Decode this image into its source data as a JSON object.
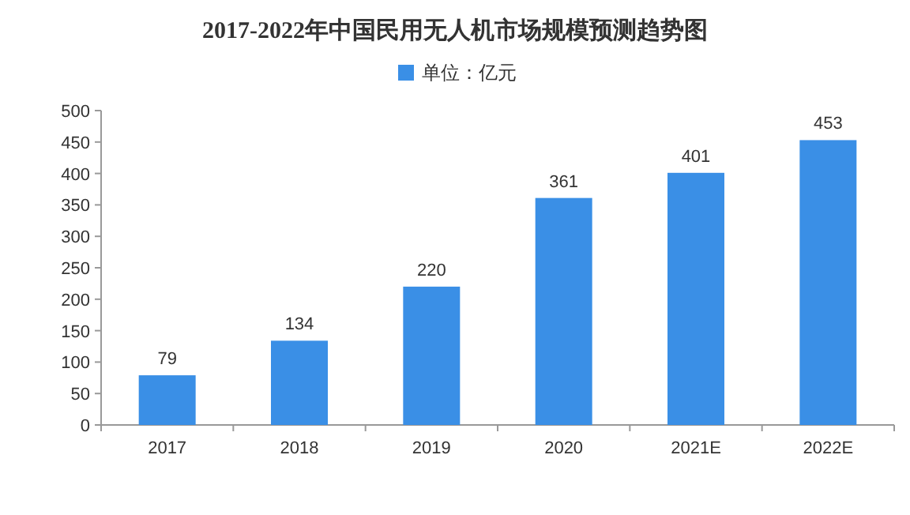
{
  "chart_data": {
    "type": "bar",
    "title": "2017-2022年中国民用无人机市场规模预测趋势图",
    "categories": [
      "2017",
      "2018",
      "2019",
      "2020",
      "2021E",
      "2022E"
    ],
    "series": [
      {
        "name": "单位：亿元",
        "color": "#3a8fe6",
        "values": [
          79,
          134,
          220,
          361,
          401,
          453
        ]
      }
    ],
    "ylim": [
      0,
      500
    ],
    "yticks": [
      0,
      50,
      100,
      150,
      200,
      250,
      300,
      350,
      400,
      450,
      500
    ],
    "data_labels": true,
    "legend": "top",
    "grid": false
  }
}
